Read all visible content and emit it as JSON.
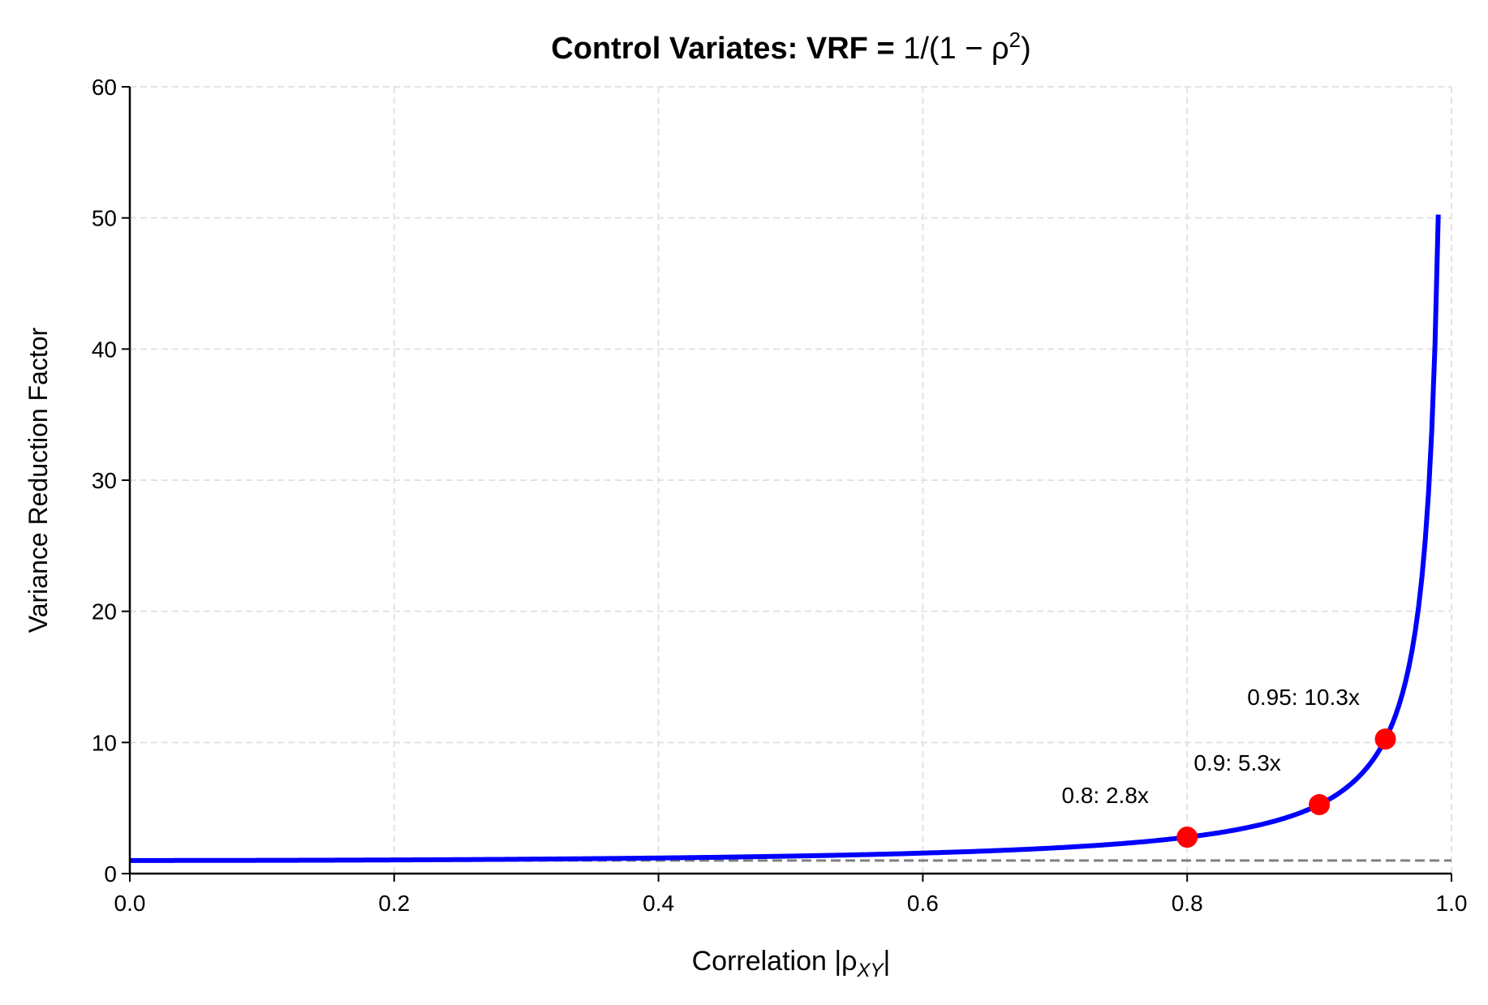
{
  "chart_data": {
    "type": "line",
    "title_parts": {
      "bold": "Control Variates: VRF = ",
      "math": "1/(1 − ρ",
      "sup": "2",
      "close": ")"
    },
    "xlabel_parts": {
      "text": "Correlation |ρ",
      "sub": "XY",
      "close": "|"
    },
    "ylabel": "Variance Reduction Factor",
    "xlim": [
      0,
      1.0
    ],
    "ylim": [
      0,
      60
    ],
    "xticks": [
      "0.0",
      "0.2",
      "0.4",
      "0.6",
      "0.8",
      "1.0"
    ],
    "yticks": [
      "0",
      "10",
      "20",
      "30",
      "40",
      "50",
      "60"
    ],
    "grid": true,
    "series": [
      {
        "formula": "1/(1-rho^2)",
        "x_range": [
          0,
          0.99
        ],
        "color": "#0000ff"
      }
    ],
    "reference_line": {
      "y": 1,
      "color": "#808080",
      "style": "dashed"
    },
    "points": [
      {
        "x": 0.8,
        "y": 2.78,
        "label": "0.8: 2.8x"
      },
      {
        "x": 0.9,
        "y": 5.26,
        "label": "0.9: 5.3x"
      },
      {
        "x": 0.95,
        "y": 10.26,
        "label": "0.95: 10.3x"
      }
    ],
    "point_color": "#ff0000"
  }
}
